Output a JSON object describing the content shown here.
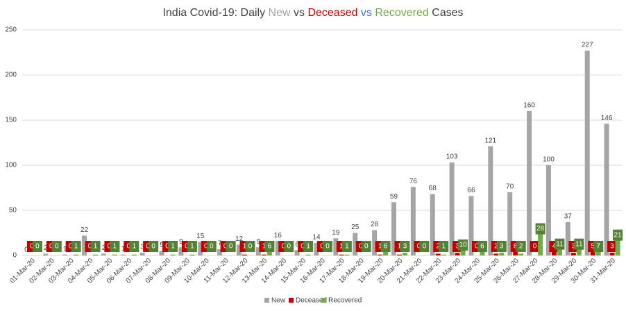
{
  "chart_data": {
    "type": "bar",
    "title_parts": [
      {
        "text": "India Covid-19: Daily ",
        "color": "#404040"
      },
      {
        "text": "New",
        "color": "#a5a5a5"
      },
      {
        "text": " vs ",
        "color": "#404040"
      },
      {
        "text": "Deceased",
        "color": "#c00000"
      },
      {
        "text": " vs ",
        "color": "#4472c4"
      },
      {
        "text": "Recovered",
        "color": "#70ad47"
      },
      {
        "text": " Cases",
        "color": "#404040"
      }
    ],
    "categories": [
      "01-Mar-20",
      "02-Mar-20",
      "03-Mar-20",
      "04-Mar-20",
      "05-Mar-20",
      "06-Mar-20",
      "07-Mar-20",
      "08-Mar-20",
      "09-Mar-20",
      "10-Mar-20",
      "11-Mar-20",
      "12-Mar-20",
      "13-Mar-20",
      "14-Mar-20",
      "15-Mar-20",
      "16-Mar-20",
      "17-Mar-20",
      "18-Mar-20",
      "19-Mar-20",
      "20-Mar-20",
      "21-Mar-20",
      "22-Mar-20",
      "23-Mar-20",
      "24-Mar-20",
      "25-Mar-20",
      "26-Mar-20",
      "27-Mar-20",
      "28-Mar-20",
      "29-Mar-20",
      "30-Mar-20",
      "31-Mar-20"
    ],
    "series": [
      {
        "name": "New",
        "color": "#a5a5a5",
        "values": [
          0,
          2,
          1,
          22,
          2,
          1,
          3,
          5,
          9,
          15,
          7,
          12,
          9,
          16,
          6,
          14,
          19,
          25,
          28,
          59,
          76,
          68,
          103,
          66,
          121,
          70,
          160,
          100,
          37,
          227,
          146
        ]
      },
      {
        "name": "Deceased",
        "color": "#c00000",
        "values": [
          0,
          0,
          0,
          0,
          0,
          0,
          0,
          0,
          0,
          0,
          0,
          1,
          1,
          0,
          0,
          0,
          1,
          0,
          1,
          1,
          0,
          2,
          3,
          0,
          2,
          8,
          0,
          4,
          3,
          5,
          3
        ]
      },
      {
        "name": "Recovered",
        "color": "#70ad47",
        "values": [
          0,
          0,
          1,
          1,
          1,
          1,
          0,
          1,
          1,
          0,
          0,
          0,
          6,
          0,
          1,
          0,
          1,
          0,
          6,
          3,
          0,
          1,
          10,
          6,
          3,
          2,
          28,
          11,
          11,
          7,
          21
        ]
      }
    ],
    "ylim": [
      0,
      250
    ],
    "yticks": [
      0,
      50,
      100,
      150,
      200,
      250
    ],
    "grid": true
  }
}
